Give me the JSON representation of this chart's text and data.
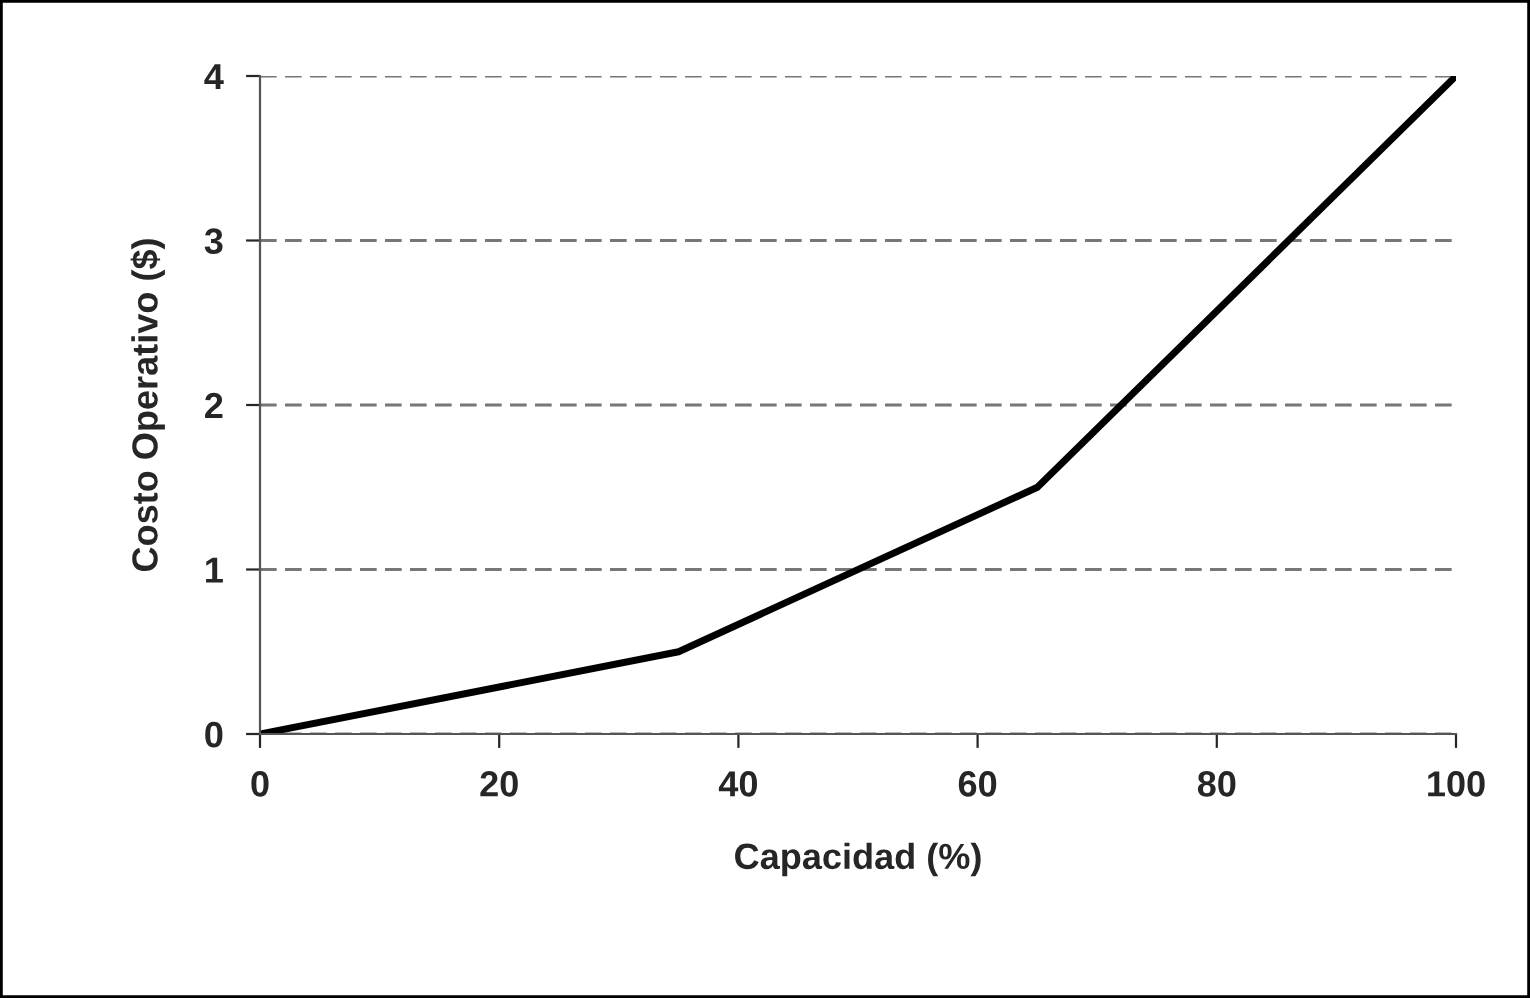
{
  "chart_data": {
    "type": "line",
    "xlabel": "Capacidad (%)",
    "ylabel": "Costo Operativo ($)",
    "x": [
      0,
      35,
      65,
      100
    ],
    "series": [
      {
        "color": "#000000",
        "values": [
          0,
          0.5,
          1.5,
          4
        ]
      }
    ],
    "xlim": [
      0,
      100
    ],
    "xticks": [
      0,
      20,
      40,
      60,
      80,
      100
    ],
    "ylim": [
      0,
      4
    ],
    "yticks": [
      0,
      1,
      2,
      3,
      4
    ],
    "grid": "y",
    "marker": "none",
    "line_style": "solid"
  }
}
